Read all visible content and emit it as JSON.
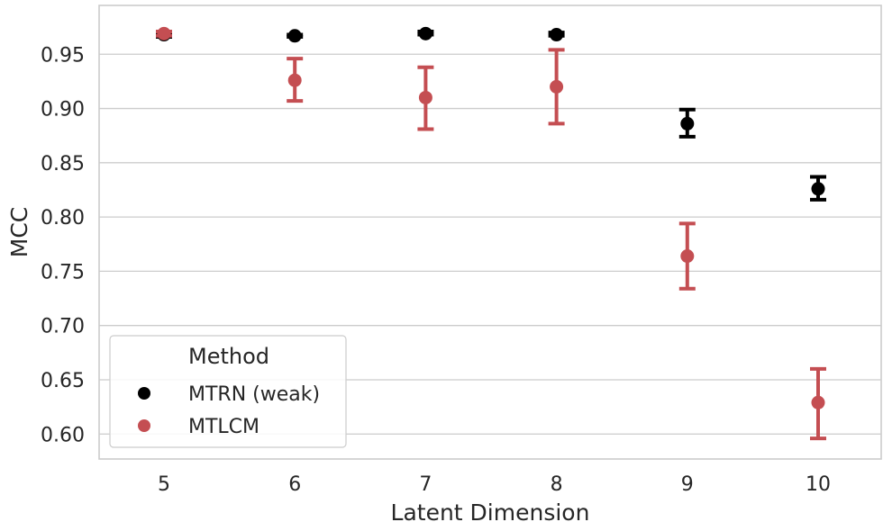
{
  "chart_data": {
    "type": "scatter",
    "title": "",
    "xlabel": "Latent Dimension",
    "ylabel": "MCC",
    "categories": [
      "5",
      "6",
      "7",
      "8",
      "9",
      "10"
    ],
    "ylim": [
      0.577,
      0.995
    ],
    "yticks": [
      "0.60",
      "0.65",
      "0.70",
      "0.75",
      "0.80",
      "0.85",
      "0.90",
      "0.95"
    ],
    "grid": true,
    "legend": {
      "title": "Method",
      "placement": "lower-left"
    },
    "series": [
      {
        "name": "MTRN (weak)",
        "color": "#000000",
        "values": [
          0.968,
          0.967,
          0.969,
          0.968,
          0.886,
          0.826
        ],
        "err_low": [
          0.966,
          0.966,
          0.968,
          0.967,
          0.874,
          0.816
        ],
        "err_high": [
          0.97,
          0.968,
          0.971,
          0.97,
          0.899,
          0.837
        ]
      },
      {
        "name": "MTLCM",
        "color": "#c44e52",
        "values": [
          0.969,
          0.926,
          0.91,
          0.92,
          0.764,
          0.629
        ],
        "err_low": [
          0.967,
          0.907,
          0.881,
          0.886,
          0.734,
          0.596
        ],
        "err_high": [
          0.971,
          0.946,
          0.938,
          0.954,
          0.794,
          0.66
        ]
      }
    ]
  }
}
